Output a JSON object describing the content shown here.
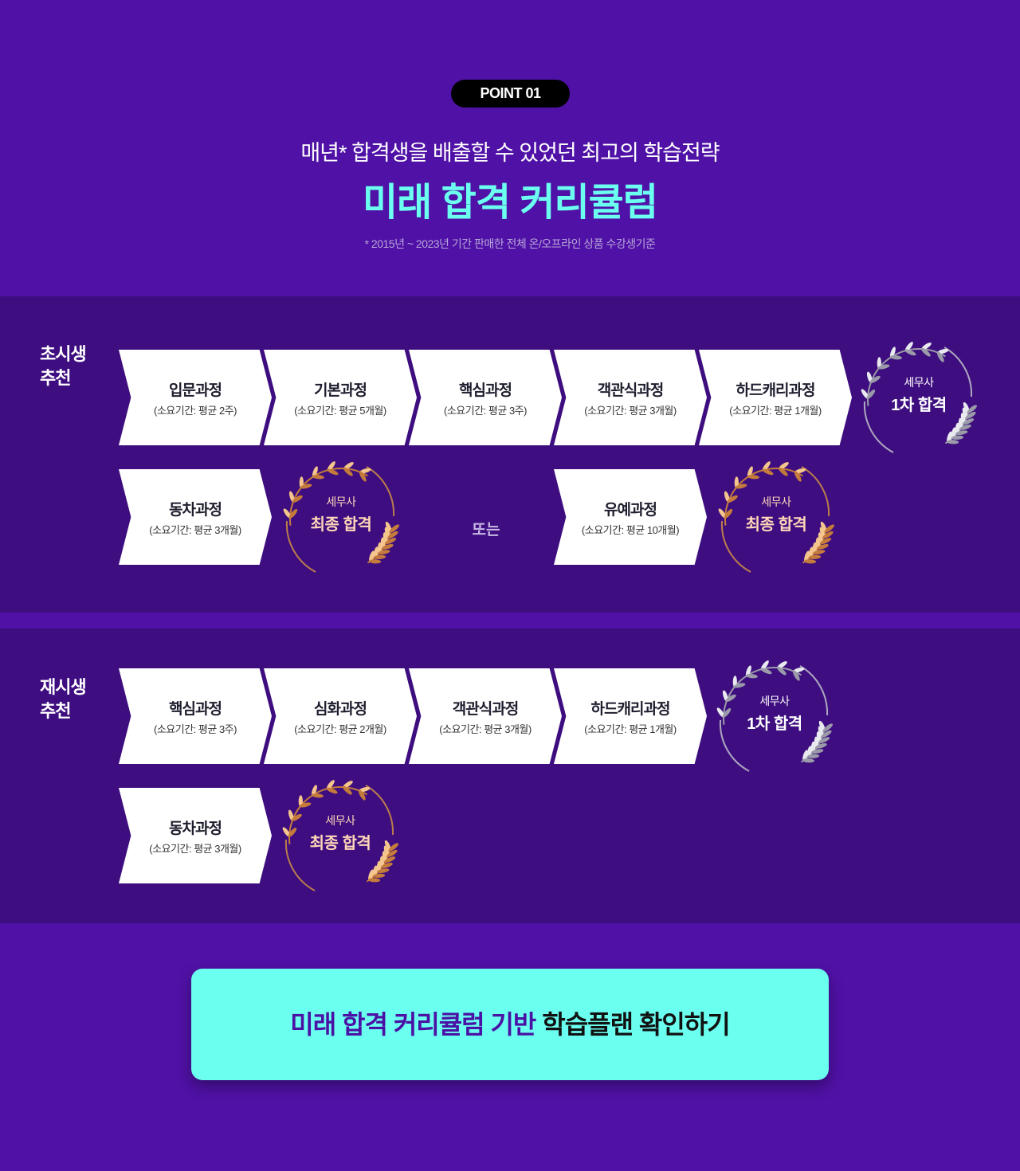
{
  "header": {
    "badge": "POINT 01",
    "subtitle": "매년* 합격생을 배출할 수 있었던 최고의 학습전략",
    "title": "미래 합격 커리큘럼",
    "note": "* 2015년 ~ 2023년 기간 판매한 전체 온/오프라인 상품 수강생기준"
  },
  "colors": {
    "background": "#5011a6",
    "band": "#3e0e80",
    "accent": "#6bfff0",
    "cta_text": "#4a11a4"
  },
  "icons": {
    "silver_wreath": "laurel-wreath-silver-icon",
    "gold_wreath": "laurel-wreath-gold-icon"
  },
  "track1": {
    "label1": "초시생",
    "label2": "추천",
    "steps": [
      {
        "name": "입문과정",
        "duration": "(소요기간: 평균 2주)"
      },
      {
        "name": "기본과정",
        "duration": "(소요기간: 평균 5개월)"
      },
      {
        "name": "핵심과정",
        "duration": "(소요기간: 평균 3주)"
      },
      {
        "name": "객관식과정",
        "duration": "(소요기간: 평균 3개월)"
      },
      {
        "name": "하드캐리과정",
        "duration": "(소요기간: 평균 1개월)"
      }
    ],
    "result1": {
      "line1": "세무사",
      "line2": "1차 합격"
    },
    "option_a": {
      "name": "동차과정",
      "duration": "(소요기간: 평균 3개월)"
    },
    "result_a": {
      "line1": "세무사",
      "line2": "최종 합격"
    },
    "or_text": "또는",
    "option_b": {
      "name": "유예과정",
      "duration": "(소요기간: 평균 10개월)"
    },
    "result_b": {
      "line1": "세무사",
      "line2": "최종 합격"
    }
  },
  "track2": {
    "label1": "재시생",
    "label2": "추천",
    "steps": [
      {
        "name": "핵심과정",
        "duration": "(소요기간: 평균 3주)"
      },
      {
        "name": "심화과정",
        "duration": "(소요기간: 평균 2개월)"
      },
      {
        "name": "객관식과정",
        "duration": "(소요기간: 평균 3개월)"
      },
      {
        "name": "하드캐리과정",
        "duration": "(소요기간: 평균 1개월)"
      }
    ],
    "result1": {
      "line1": "세무사",
      "line2": "1차 합격"
    },
    "option_a": {
      "name": "동차과정",
      "duration": "(소요기간: 평균 3개월)"
    },
    "result_a": {
      "line1": "세무사",
      "line2": "최종 합격"
    }
  },
  "cta": {
    "part1": "미래 합격 커리큘럼 기반 ",
    "part2": "학습플랜 확인하기"
  }
}
